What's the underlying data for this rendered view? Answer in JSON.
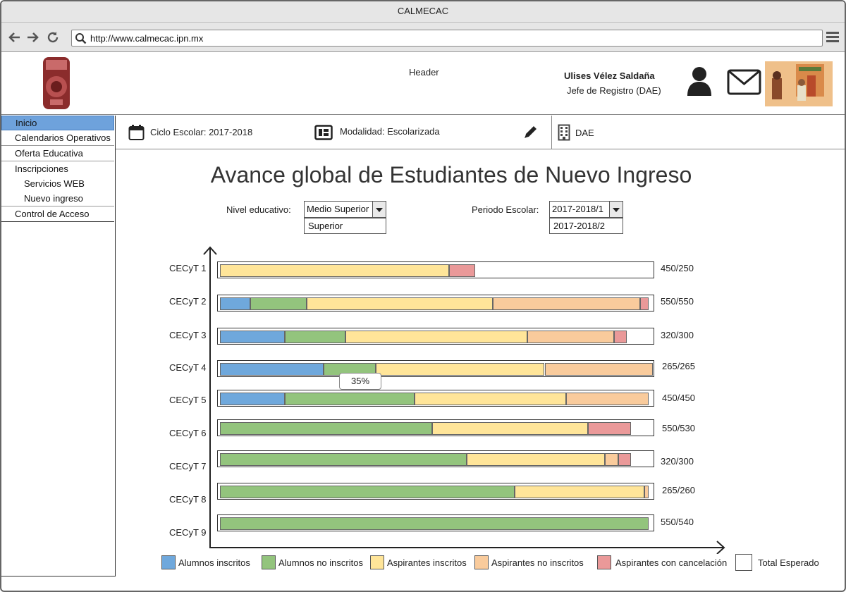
{
  "window": {
    "title": "CALMECAC"
  },
  "browser": {
    "url": "http://www.calmecac.ipn.mx"
  },
  "header": {
    "label": "Header",
    "user_name": "Ulises Vélez Saldaña",
    "user_role": "Jefe de Registro (DAE)"
  },
  "sidebar": {
    "items": [
      {
        "label": "Inicio"
      },
      {
        "label": "Calendarios Operativos"
      },
      {
        "label": "Oferta Educativa"
      },
      {
        "label": "Inscripciones"
      },
      {
        "label": "Servicios WEB"
      },
      {
        "label": "Nuevo ingreso"
      },
      {
        "label": "Control de Acceso"
      }
    ]
  },
  "infobar": {
    "ciclo": "Ciclo Escolar: 2017-2018",
    "modalidad": "Modalidad: Escolarizada",
    "dependencia": "DAE"
  },
  "page": {
    "title": "Avance global de Estudiantes de Nuevo Ingreso"
  },
  "filters": {
    "nivel_label": "Nivel educativo:",
    "nivel_selected": "Medio Superior",
    "nivel_option": "Superior",
    "periodo_label": "Periodo Escolar:",
    "periodo_selected": "2017-2018/1",
    "periodo_option": "2017-2018/2"
  },
  "tooltip": {
    "text": "35%"
  },
  "colors": {
    "alumnos_inscritos": "#6fa8dc",
    "alumnos_no_inscritos": "#93c47d",
    "aspirantes_inscritos": "#ffe599",
    "aspirantes_no_inscritos": "#f9cb9c",
    "aspirantes_cancelacion": "#ea9999",
    "total_esperado": "#ffffff"
  },
  "chart_data": {
    "type": "bar",
    "orientation": "horizontal",
    "stacked": true,
    "categories": [
      "CECyT 1",
      "CECyT 2",
      "CECyT 3",
      "CECyT 4",
      "CECyT 5",
      "CECyT 6",
      "CECyT 7",
      "CECyT 8",
      "CECyT 9"
    ],
    "ratio_labels": [
      "450/250",
      "550/550",
      "320/300",
      "265/265",
      "450/450",
      "550/530",
      "320/300",
      "265/260",
      "550/540"
    ],
    "series": [
      {
        "name": "Alumnos inscritos",
        "color": "#6fa8dc",
        "values": [
          0,
          7,
          15,
          24,
          15,
          0,
          0,
          0,
          0
        ]
      },
      {
        "name": "Alumnos no inscritos",
        "color": "#93c47d",
        "values": [
          0,
          13,
          14,
          12,
          30,
          49,
          57,
          68,
          99
        ]
      },
      {
        "name": "Aspirantes inscritos",
        "color": "#ffe599",
        "values": [
          53,
          43,
          42,
          39,
          35,
          36,
          32,
          30,
          0
        ]
      },
      {
        "name": "Aspirantes no inscritos",
        "color": "#f9cb9c",
        "values": [
          0,
          34,
          20,
          25,
          19,
          0,
          3,
          1,
          0
        ]
      },
      {
        "name": "Aspirantes con cancelación",
        "color": "#ea9999",
        "values": [
          6,
          2,
          3,
          0,
          0,
          10,
          3,
          0,
          0
        ]
      }
    ],
    "legend": [
      {
        "name": "Alumnos inscritos",
        "color": "#6fa8dc"
      },
      {
        "name": "Alumnos no inscritos",
        "color": "#93c47d"
      },
      {
        "name": "Aspirantes inscritos",
        "color": "#ffe599"
      },
      {
        "name": "Aspirantes no inscritos",
        "color": "#f9cb9c"
      },
      {
        "name": "Aspirantes con cancelación",
        "color": "#ea9999"
      },
      {
        "name": "Total Esperado",
        "color": "#ffffff"
      }
    ],
    "xlim": [
      0,
      100
    ],
    "legend_position": "bottom"
  }
}
